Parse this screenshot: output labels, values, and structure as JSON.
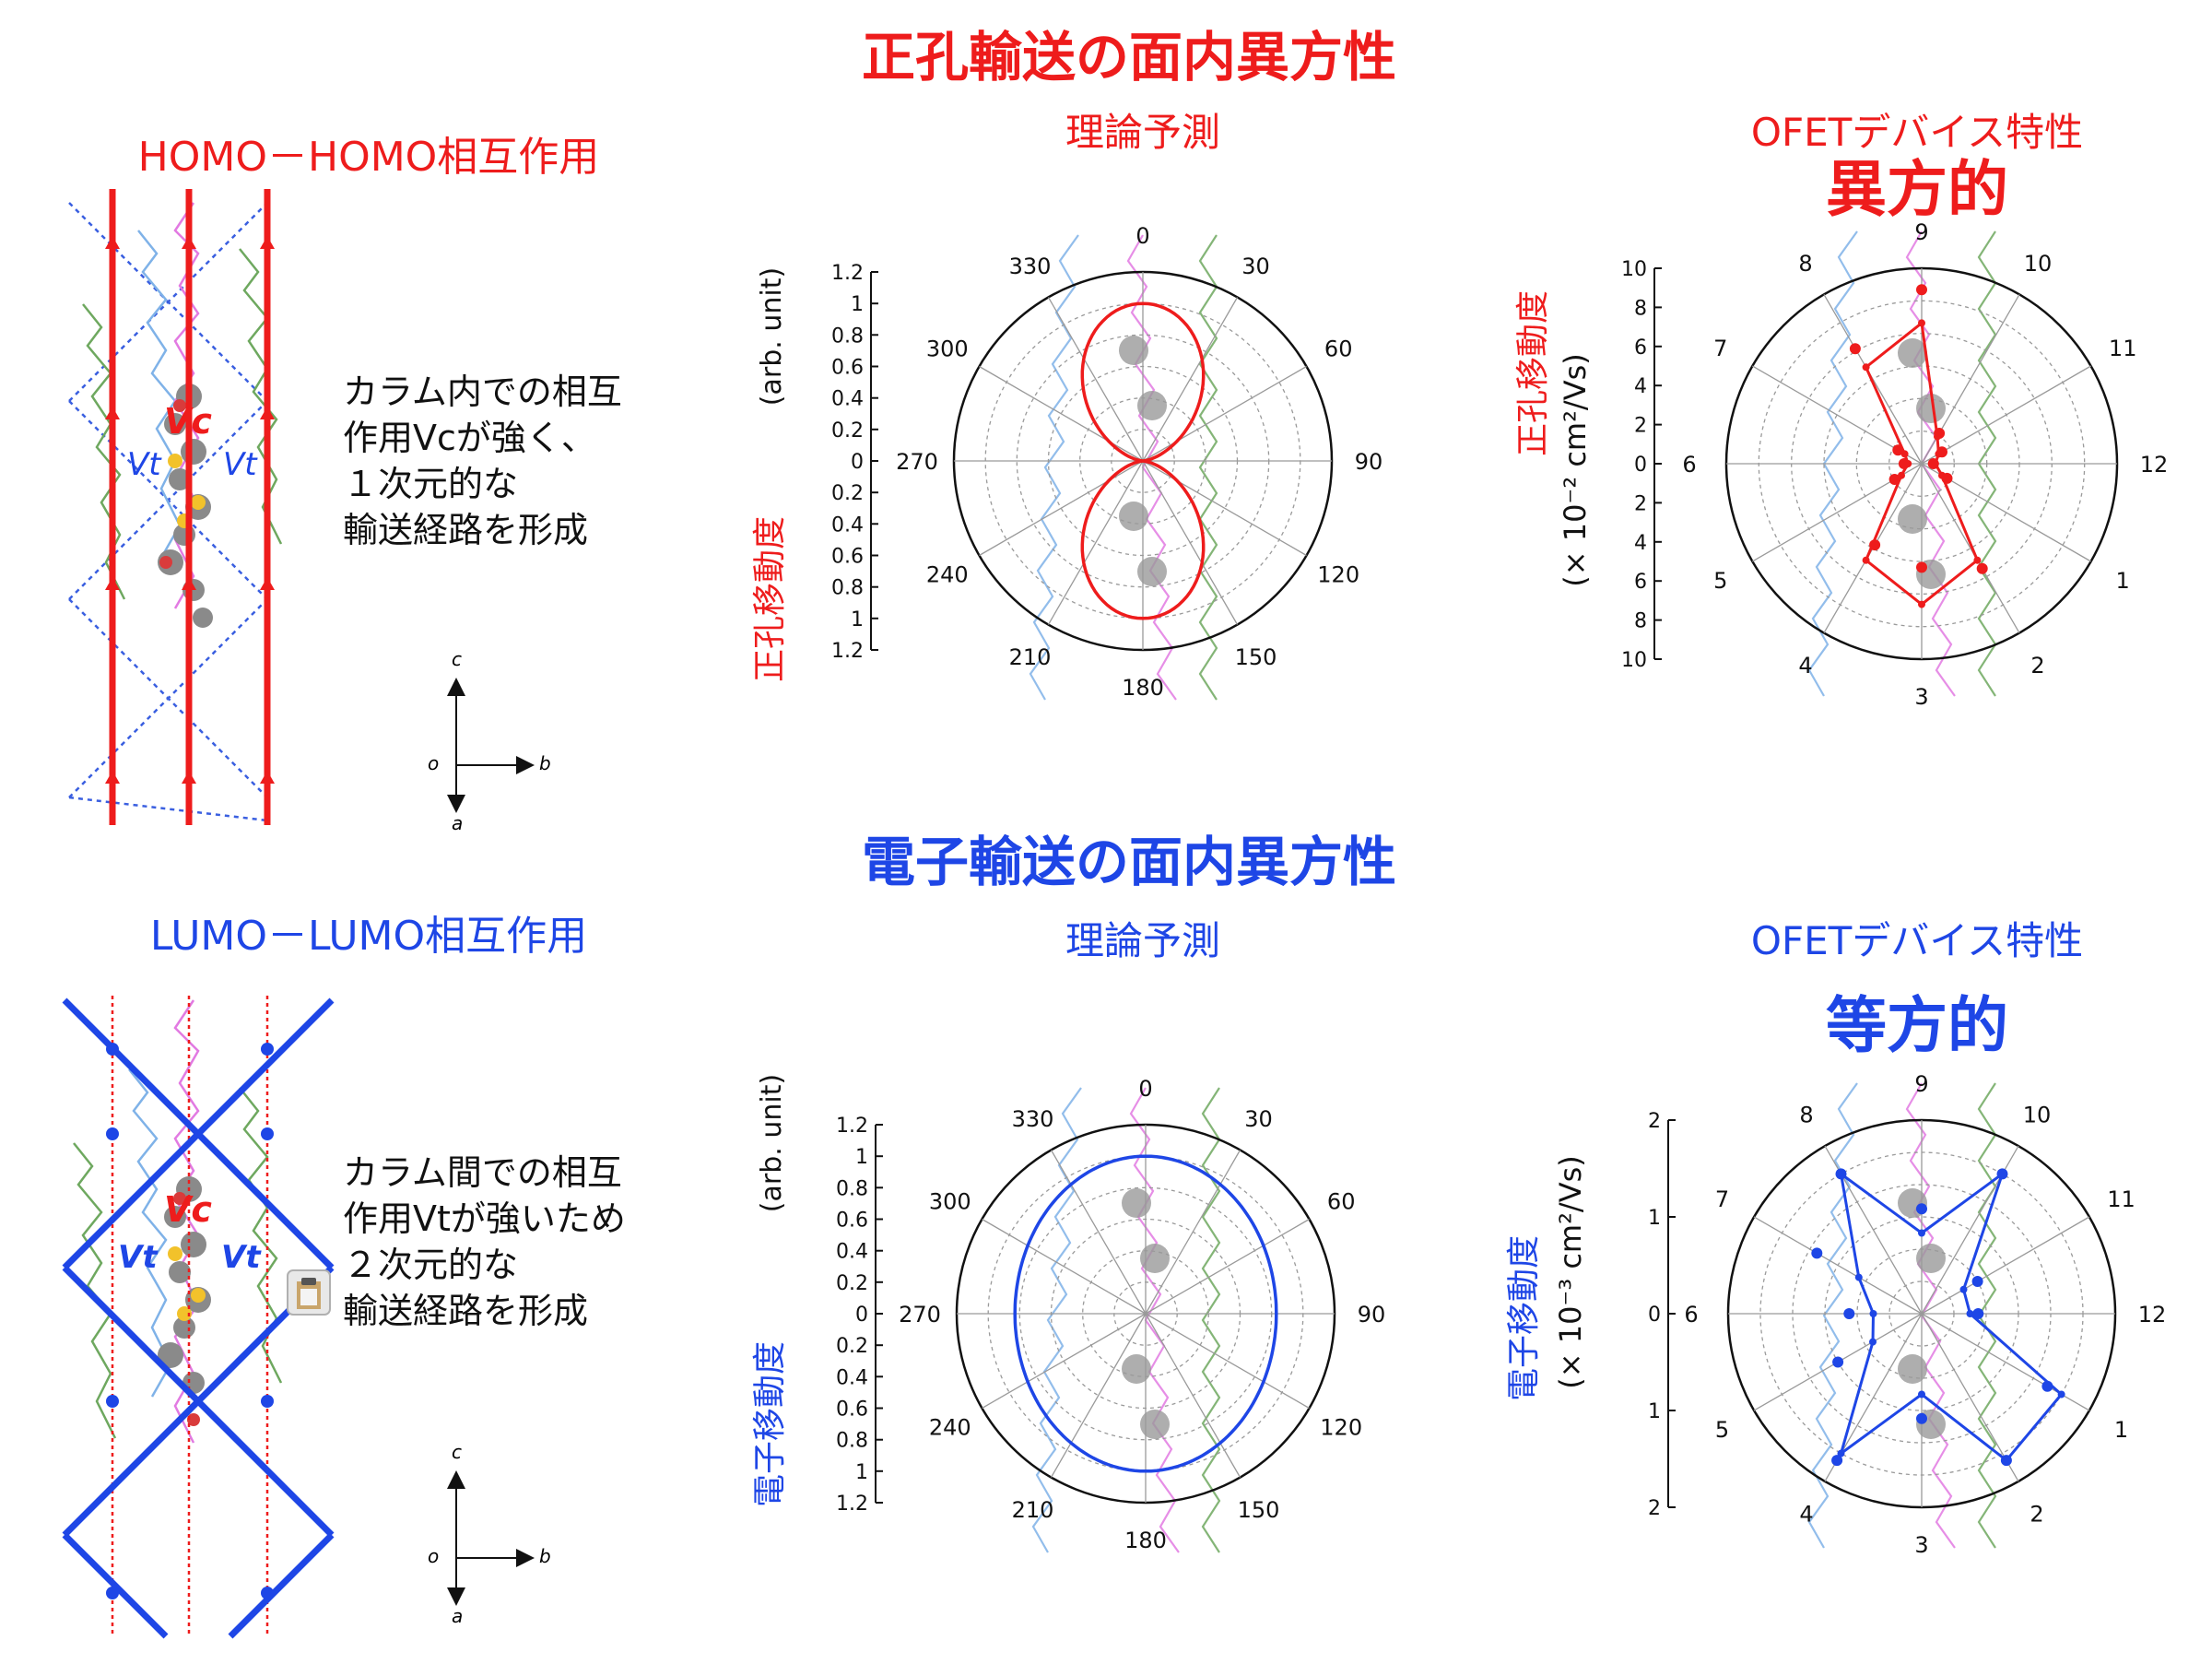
{
  "hole": {
    "title": "正孔輸送の面内異方性",
    "interaction_title": "HOMO－HOMO相互作用",
    "desc": [
      "カラム内での相互",
      "作用Vcが強く、",
      "１次元的な",
      "輸送経路を形成"
    ],
    "coupling_main": "Vc",
    "coupling_side": "Vt",
    "theory_title": "理論予測",
    "theory_ylabel_jp": "正孔移動度",
    "theory_ylabel_unit": "(arb. unit)",
    "device_title": "OFETデバイス特性",
    "device_verdict": "異方的",
    "device_ylabel_jp": "正孔移動度",
    "device_ylabel_unit": "(× 10⁻² cm²/Vs)",
    "color": "#ee1c1c"
  },
  "electron": {
    "title": "電子輸送の面内異方性",
    "interaction_title": "LUMO－LUMO相互作用",
    "desc": [
      "カラム間での相互",
      "作用Vtが強いため",
      "２次元的な",
      "輸送経路を形成"
    ],
    "coupling_main": "Vc",
    "coupling_side": "Vt",
    "theory_title": "理論予測",
    "theory_ylabel_jp": "電子移動度",
    "theory_ylabel_unit": "(arb. unit)",
    "device_title": "OFETデバイス特性",
    "device_verdict": "等方的",
    "device_ylabel_jp": "電子移動度",
    "device_ylabel_unit": "(× 10⁻³ cm²/Vs)",
    "color": "#1e46e6"
  },
  "axes": {
    "c": "c",
    "o": "o",
    "b": "b",
    "a": "a"
  },
  "chart_data": [
    {
      "type": "polar-line",
      "name": "hole-theory",
      "angle_ticks": [
        "0",
        "30",
        "60",
        "90",
        "120",
        "150",
        "180",
        "210",
        "240",
        "270",
        "300",
        "330"
      ],
      "radial_ticks": [
        "1.2",
        "1",
        "0.8",
        "0.6",
        "0.4",
        "0.2",
        "0",
        "0.2",
        "0.4",
        "0.6",
        "0.8",
        "1",
        "1.2"
      ],
      "rlim": [
        0,
        1.2
      ],
      "curve": {
        "shape": "cos-squared",
        "max": 1.0
      }
    },
    {
      "type": "polar-line",
      "name": "hole-device",
      "angle_ticks": [
        "9",
        "10",
        "11",
        "12",
        "1",
        "2",
        "3",
        "4",
        "5",
        "6",
        "7",
        "8"
      ],
      "radial_ticks": [
        "10",
        "8",
        "6",
        "4",
        "2",
        "0",
        "2",
        "4",
        "6",
        "8",
        "10"
      ],
      "rlim": [
        0,
        10
      ],
      "angles_deg": [
        0,
        30,
        60,
        90,
        120,
        150,
        180,
        210,
        240,
        270,
        300,
        330
      ],
      "values": [
        7.2,
        1.6,
        1.0,
        0.7,
        1.2,
        5.7,
        7.2,
        5.7,
        1.2,
        0.7,
        1.0,
        5.7
      ],
      "points": [
        8.9,
        1.8,
        1.2,
        0.6,
        1.5,
        6.2,
        5.3,
        4.8,
        1.6,
        0.9,
        1.4,
        6.8
      ]
    },
    {
      "type": "polar-line",
      "name": "electron-theory",
      "angle_ticks": [
        "0",
        "30",
        "60",
        "90",
        "120",
        "150",
        "180",
        "210",
        "240",
        "270",
        "300",
        "330"
      ],
      "radial_ticks": [
        "1.2",
        "1",
        "0.8",
        "0.6",
        "0.4",
        "0.2",
        "0",
        "0.2",
        "0.4",
        "0.6",
        "0.8",
        "1",
        "1.2"
      ],
      "rlim": [
        0,
        1.2
      ],
      "curve": {
        "shape": "ellipse",
        "a_vertical": 1.0,
        "b_horizontal": 0.83
      }
    },
    {
      "type": "polar-line",
      "name": "electron-device",
      "angle_ticks": [
        "9",
        "10",
        "11",
        "12",
        "1",
        "2",
        "3",
        "4",
        "5",
        "6",
        "7",
        "8"
      ],
      "radial_ticks": [
        "2",
        "1",
        "0",
        "1",
        "2"
      ],
      "rlim": [
        0,
        2.4
      ],
      "angles_deg": [
        0,
        30,
        60,
        90,
        120,
        150,
        180,
        210,
        240,
        270,
        300,
        330
      ],
      "values": [
        1.0,
        2.0,
        0.6,
        0.6,
        2.0,
        2.1,
        1.0,
        2.0,
        0.7,
        0.6,
        0.9,
        2.0
      ],
      "points": [
        1.3,
        2.0,
        0.8,
        0.7,
        1.8,
        2.1,
        1.3,
        2.1,
        1.2,
        0.9,
        1.5,
        2.0
      ]
    }
  ]
}
